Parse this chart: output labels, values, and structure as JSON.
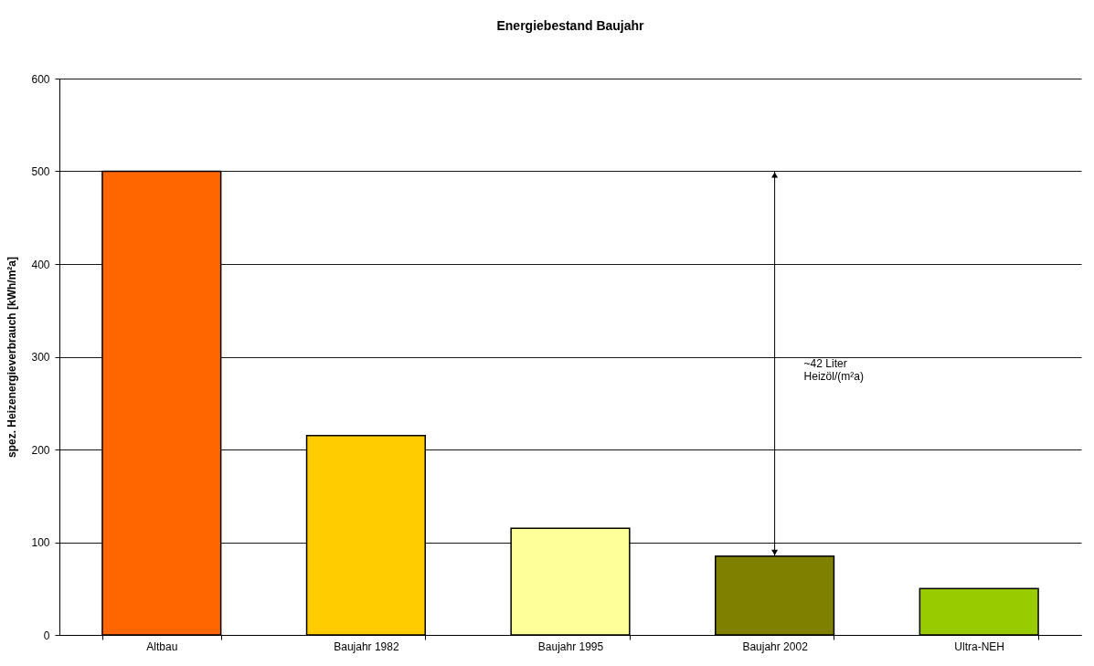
{
  "chart_data": {
    "type": "bar",
    "title": "Energiebestand Baujahr",
    "ylabel": "spez. Heizenergieverbrauch [kWh/m²a]",
    "categories": [
      "Altbau",
      "Baujahr 1982",
      "Baujahr 1995",
      "Baujahr 2002",
      "Ultra-NEH"
    ],
    "values": [
      500,
      215,
      115,
      85,
      50
    ],
    "colors": [
      "#ff6600",
      "#ffcc00",
      "#ffff99",
      "#808000",
      "#99cc00"
    ],
    "ylim": [
      0,
      600
    ],
    "yticks": [
      0,
      100,
      200,
      300,
      400,
      500,
      600
    ],
    "grid": "y",
    "legend": false,
    "annotations": [
      "~42 Liter\nHeizöl/(m²a)"
    ]
  }
}
